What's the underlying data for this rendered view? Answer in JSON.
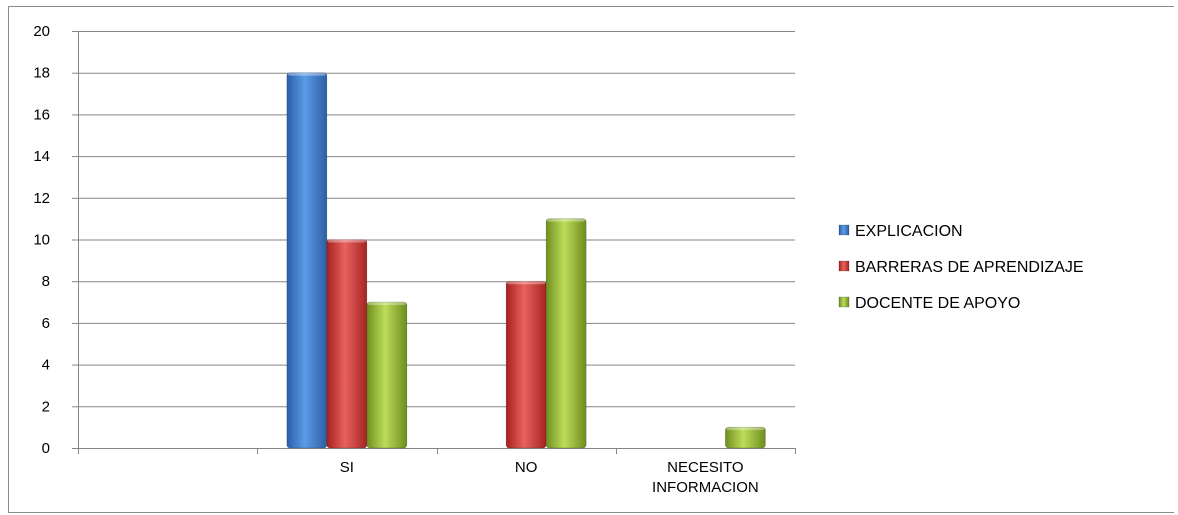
{
  "chart_data": {
    "type": "bar",
    "categories": [
      "",
      "SI",
      "NO",
      "NECESITO INFORMACION"
    ],
    "category_label_lines": [
      [
        ""
      ],
      [
        "SI"
      ],
      [
        "NO"
      ],
      [
        "NECESITO",
        "INFORMACION"
      ]
    ],
    "series": [
      {
        "name": "EXPLICACION",
        "values": [
          null,
          18,
          null,
          null
        ],
        "color": "#3f7fd0"
      },
      {
        "name": "BARRERAS DE APRENDIZAJE",
        "values": [
          null,
          10,
          8,
          null
        ],
        "color": "#d64542"
      },
      {
        "name": "DOCENTE DE APOYO",
        "values": [
          null,
          7,
          11,
          1
        ],
        "color": "#9bc23c"
      }
    ],
    "y_ticks": [
      0,
      2,
      4,
      6,
      8,
      10,
      12,
      14,
      16,
      18,
      20
    ],
    "ylim": [
      0,
      20
    ],
    "grid": true,
    "legend_position": "right"
  }
}
